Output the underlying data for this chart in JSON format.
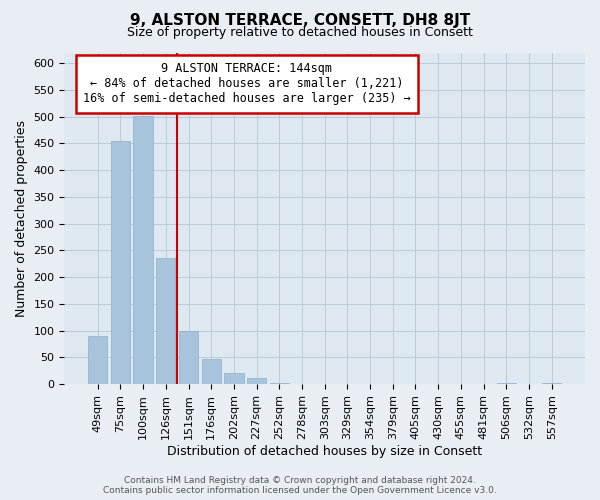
{
  "title": "9, ALSTON TERRACE, CONSETT, DH8 8JT",
  "subtitle": "Size of property relative to detached houses in Consett",
  "xlabel": "Distribution of detached houses by size in Consett",
  "ylabel": "Number of detached properties",
  "bar_labels": [
    "49sqm",
    "75sqm",
    "100sqm",
    "126sqm",
    "151sqm",
    "176sqm",
    "202sqm",
    "227sqm",
    "252sqm",
    "278sqm",
    "303sqm",
    "329sqm",
    "354sqm",
    "379sqm",
    "405sqm",
    "430sqm",
    "455sqm",
    "481sqm",
    "506sqm",
    "532sqm",
    "557sqm"
  ],
  "bar_values": [
    90,
    455,
    502,
    236,
    100,
    47,
    21,
    11,
    2,
    0,
    0,
    0,
    0,
    0,
    0,
    0,
    0,
    0,
    2,
    0,
    2
  ],
  "bar_color": "#a8c4dc",
  "bar_edge_color": "#8ab0cc",
  "vline_color": "#cc0000",
  "vline_x_index": 3,
  "annotation_line1": "9 ALSTON TERRACE: 144sqm",
  "annotation_line2": "← 84% of detached houses are smaller (1,221)",
  "annotation_line3": "16% of semi-detached houses are larger (235) →",
  "annotation_box_color": "#ffffff",
  "annotation_box_edge": "#cc0000",
  "ylim": [
    0,
    620
  ],
  "yticks": [
    0,
    50,
    100,
    150,
    200,
    250,
    300,
    350,
    400,
    450,
    500,
    550,
    600
  ],
  "footer_line1": "Contains HM Land Registry data © Crown copyright and database right 2024.",
  "footer_line2": "Contains public sector information licensed under the Open Government Licence v3.0.",
  "bg_color": "#e8eef4",
  "plot_bg_color": "#dde8f0",
  "title_fontsize": 11,
  "subtitle_fontsize": 9,
  "axis_label_fontsize": 9,
  "tick_fontsize": 8,
  "footer_fontsize": 6.5
}
